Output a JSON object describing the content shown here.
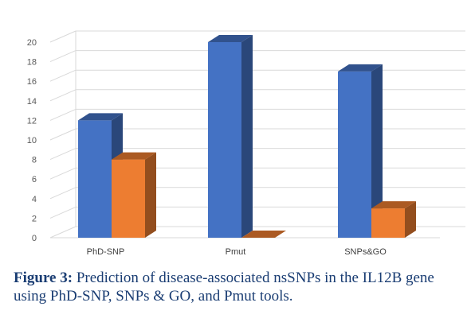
{
  "chart_data": {
    "type": "bar",
    "categories": [
      "PhD-SNP",
      "Pmut",
      "SNPs&GO"
    ],
    "series": [
      {
        "values": [
          12,
          20,
          17
        ],
        "color": "#4472c4"
      },
      {
        "values": [
          8,
          0,
          3
        ],
        "color": "#ed7d31"
      }
    ],
    "ylim": [
      0,
      20
    ],
    "yticks": [
      0,
      2,
      4,
      6,
      8,
      10,
      12,
      14,
      16,
      18,
      20
    ],
    "grid": true,
    "legend": "none",
    "style": "3d"
  },
  "caption": {
    "label": "Figure 3:",
    "text": " Prediction of disease-associated nsSNPs in the IL12B gene using PhD-SNP, SNPs & GO, and Pmut tools."
  }
}
